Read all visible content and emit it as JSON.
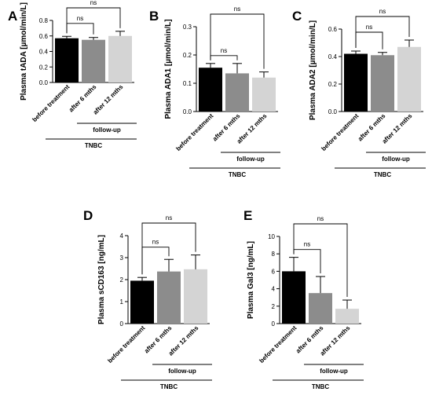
{
  "figure": {
    "series_colors": [
      "#000000",
      "#8c8c8c",
      "#d4d4d4"
    ],
    "group_labels": {
      "followup": "follow-up",
      "cohort": "TNBC"
    }
  },
  "chart_data": [
    {
      "panel": "A",
      "type": "bar",
      "categories": [
        "before treatment",
        "after 6 mths",
        "after 12 mths"
      ],
      "values": [
        0.57,
        0.55,
        0.6
      ],
      "errors": [
        0.025,
        0.03,
        0.06
      ],
      "ylabel": "Plasma tADA [µmol/min/L]",
      "ylim": [
        0,
        0.8
      ],
      "yticks": [
        "0.0",
        "0.2",
        "0.4",
        "0.6",
        "0.8"
      ],
      "significance": [
        {
          "from": 0,
          "to": 1,
          "label": "ns"
        },
        {
          "from": 0,
          "to": 2,
          "label": "ns"
        }
      ]
    },
    {
      "panel": "B",
      "type": "bar",
      "categories": [
        "before treatment",
        "after 6 mths",
        "after 12 mths"
      ],
      "values": [
        0.155,
        0.135,
        0.12
      ],
      "errors": [
        0.015,
        0.035,
        0.02
      ],
      "ylabel": "Plasma ADA1 [µmol/min/L]",
      "ylim": [
        0,
        0.3
      ],
      "yticks": [
        "0.0",
        "0.1",
        "0.2",
        "0.3"
      ],
      "significance": [
        {
          "from": 0,
          "to": 1,
          "label": "ns"
        },
        {
          "from": 0,
          "to": 2,
          "label": "ns"
        }
      ]
    },
    {
      "panel": "C",
      "type": "bar",
      "categories": [
        "before treatment",
        "after 6 mths",
        "after 12 mths"
      ],
      "values": [
        0.42,
        0.41,
        0.47
      ],
      "errors": [
        0.02,
        0.02,
        0.05
      ],
      "ylabel": "Plasma ADA2 [µmol/min/L]",
      "ylim": [
        0,
        0.6
      ],
      "yticks": [
        "0.0",
        "0.2",
        "0.4",
        "0.6"
      ],
      "significance": [
        {
          "from": 0,
          "to": 1,
          "label": "ns"
        },
        {
          "from": 0,
          "to": 2,
          "label": "ns"
        }
      ]
    },
    {
      "panel": "D",
      "type": "bar",
      "categories": [
        "before treatment",
        "after 6 mths",
        "after 12 mths"
      ],
      "values": [
        1.95,
        2.37,
        2.47
      ],
      "errors": [
        0.15,
        0.55,
        0.65
      ],
      "ylabel": "Plasma sCD163 [ng/mL]",
      "ylim": [
        0,
        4
      ],
      "yticks": [
        "0",
        "1",
        "2",
        "3",
        "4"
      ],
      "significance": [
        {
          "from": 0,
          "to": 1,
          "label": "ns"
        },
        {
          "from": 0,
          "to": 2,
          "label": "ns"
        }
      ]
    },
    {
      "panel": "E",
      "type": "bar",
      "categories": [
        "before treatment",
        "after 6 mths",
        "after 12 mths"
      ],
      "values": [
        6.0,
        3.5,
        1.7
      ],
      "errors": [
        1.6,
        1.9,
        1.0
      ],
      "ylabel": "Plasma Gal3 [ng/mL]",
      "ylim": [
        0,
        10
      ],
      "yticks": [
        "0",
        "2",
        "4",
        "6",
        "8",
        "10"
      ],
      "significance": [
        {
          "from": 0,
          "to": 1,
          "label": "ns"
        },
        {
          "from": 0,
          "to": 2,
          "label": "ns"
        }
      ]
    }
  ]
}
